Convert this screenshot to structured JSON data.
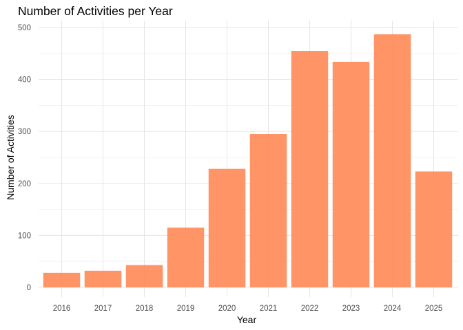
{
  "chart_data": {
    "type": "bar",
    "title": "Number of Activities per Year",
    "xlabel": "Year",
    "ylabel": "Number of Activities",
    "categories": [
      "2016",
      "2017",
      "2018",
      "2019",
      "2020",
      "2021",
      "2022",
      "2023",
      "2024",
      "2025"
    ],
    "values": [
      28,
      32,
      43,
      115,
      228,
      295,
      455,
      434,
      487,
      223
    ],
    "ylim": [
      0,
      510
    ],
    "yticks": [
      0,
      100,
      200,
      300,
      400,
      500
    ],
    "grid": true,
    "bar_color": "#ff8c5a",
    "legend": "none"
  }
}
